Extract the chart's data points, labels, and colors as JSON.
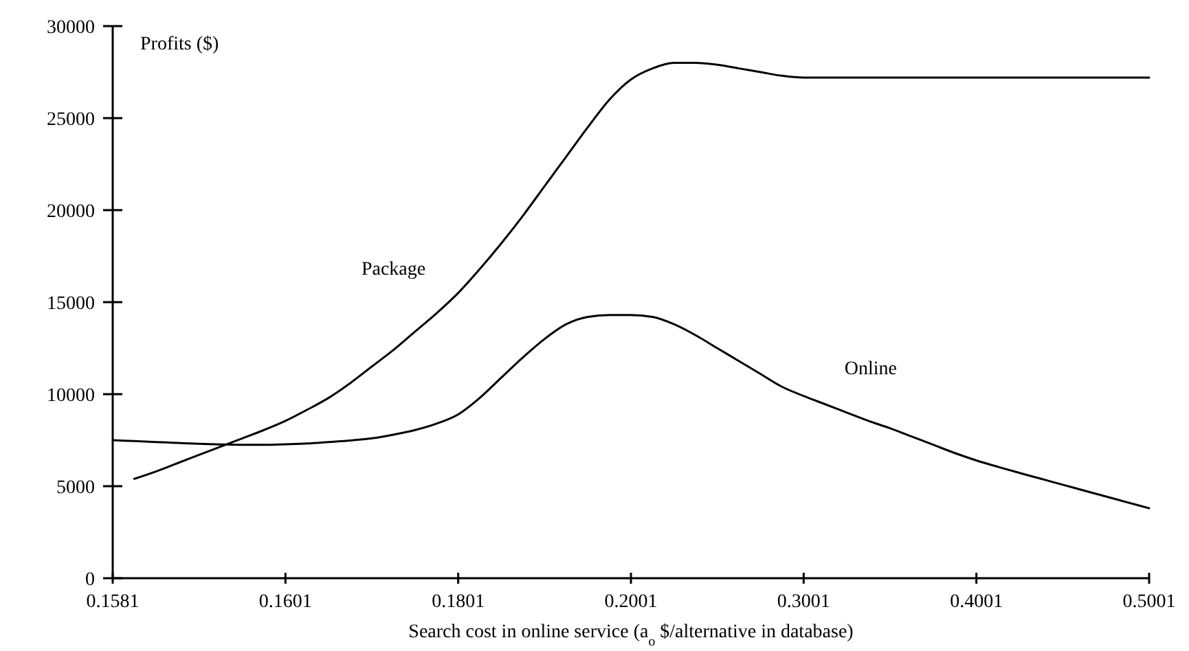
{
  "chart_data": {
    "type": "line",
    "xlabel": "Search cost in online service (a$_{o}$ $/alternative in database)",
    "ylabel": "Profits ($)",
    "categories": [
      "0.1581",
      null,
      null,
      null,
      null,
      null,
      null,
      null,
      "0.1601",
      null,
      null,
      null,
      null,
      null,
      null,
      null,
      "0.1801",
      null,
      null,
      null,
      null,
      null,
      null,
      null,
      "0.2001",
      null,
      null,
      null,
      null,
      null,
      null,
      null,
      "0.3001",
      null,
      null,
      null,
      null,
      null,
      null,
      null,
      "0.4001",
      null,
      null,
      null,
      null,
      null,
      null,
      null,
      "0.5001"
    ],
    "series": [
      {
        "name": "Package",
        "color": "#000000",
        "values": [
          null,
          5400,
          5800,
          6250,
          6700,
          7150,
          7600,
          8050,
          8550,
          9150,
          9800,
          10600,
          11500,
          12400,
          13400,
          14400,
          15500,
          16800,
          18200,
          19700,
          21300,
          22900,
          24500,
          26000,
          27100,
          27700,
          28000,
          28000,
          27900,
          27700,
          27500,
          27300,
          27200,
          27200,
          27200,
          27200,
          27200,
          27200,
          27200,
          27200,
          27200,
          27200,
          27200,
          27200,
          27200,
          27200,
          27200,
          27200,
          27200
        ]
      },
      {
        "name": "Online",
        "color": "#000000",
        "values": [
          7500,
          7450,
          7400,
          7350,
          7300,
          7270,
          7250,
          7250,
          7280,
          7320,
          7400,
          7480,
          7600,
          7800,
          8050,
          8400,
          8900,
          9800,
          10900,
          12000,
          13000,
          13800,
          14200,
          14300,
          14300,
          14200,
          13800,
          13200,
          12500,
          11800,
          11100,
          10400,
          9900,
          9450,
          9000,
          8550,
          8150,
          7700,
          7250,
          6800,
          6400,
          6050,
          5720,
          5400,
          5080,
          4760,
          4440,
          4120,
          3800
        ]
      }
    ],
    "ylim": [
      0,
      30000
    ],
    "yticks": [
      0,
      5000,
      10000,
      15000,
      20000,
      25000,
      30000
    ],
    "grid": false,
    "marker": "none",
    "line_style": "solid"
  }
}
